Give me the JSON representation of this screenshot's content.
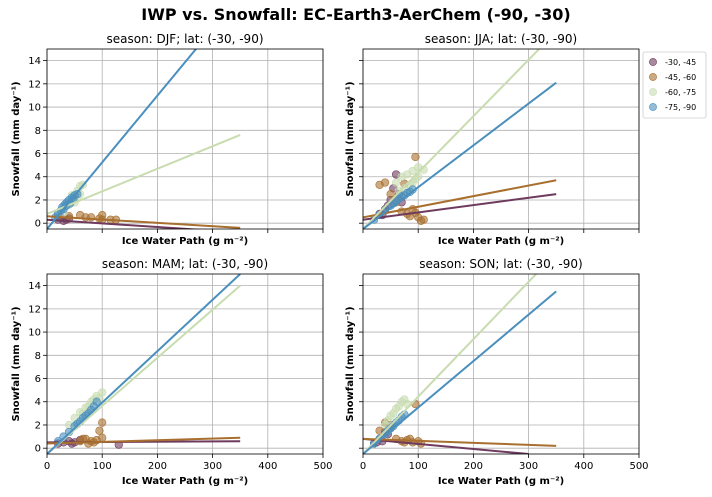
{
  "figure": {
    "title": "IWP vs. Snowfall: EC-Earth3-AerChem  (-90, -30)"
  },
  "colors": {
    "-30, -45": "#6e3a5e",
    "-45, -60": "#a86f2e",
    "-60, -75": "#c8dcb0",
    "-75, -90": "#4a8fbd"
  },
  "legend": {
    "placement": "right of top-right panel",
    "entries": [
      "-30, -45",
      "-45, -60",
      "-60, -75",
      "-75, -90"
    ]
  },
  "chart_data": [
    {
      "type": "scatter",
      "title": "season: DJF; lat: (-30, -90)",
      "xlabel": "Ice Water Path (g m⁻²)",
      "ylabel": "Snowfall (mm day⁻¹)",
      "xlim": [
        0,
        500
      ],
      "ylim": [
        -0.5,
        15
      ],
      "xticks": [
        0,
        100,
        200,
        300,
        400,
        500
      ],
      "yticks": [
        0,
        2,
        4,
        6,
        8,
        10,
        12,
        14
      ],
      "show_xticklabels": false,
      "show_yticklabels": true,
      "grid": true,
      "series": [
        {
          "name": "-30, -45",
          "points": [
            [
              20,
              0.3
            ],
            [
              30,
              0.2
            ],
            [
              40,
              0.4
            ],
            [
              25,
              0.5
            ],
            [
              35,
              0.3
            ]
          ],
          "fit": {
            "x": [
              0,
              350
            ],
            "y": [
              0.3,
              -0.8
            ]
          }
        },
        {
          "name": "-45, -60",
          "points": [
            [
              20,
              0.5
            ],
            [
              40,
              0.6
            ],
            [
              60,
              0.7
            ],
            [
              80,
              0.5
            ],
            [
              100,
              0.7
            ],
            [
              100,
              0.3
            ],
            [
              115,
              0.3
            ],
            [
              125,
              0.3
            ],
            [
              95,
              0.4
            ],
            [
              70,
              0.5
            ]
          ],
          "fit": {
            "x": [
              0,
              350
            ],
            "y": [
              0.6,
              -0.4
            ]
          }
        },
        {
          "name": "-60, -75",
          "points": [
            [
              20,
              0.8
            ],
            [
              30,
              1.2
            ],
            [
              40,
              1.6
            ],
            [
              45,
              2
            ],
            [
              50,
              2.4
            ],
            [
              55,
              2.8
            ],
            [
              60,
              3.2
            ],
            [
              65,
              3.3
            ],
            [
              35,
              1.5
            ],
            [
              50,
              1.8
            ],
            [
              60,
              2.5
            ],
            [
              45,
              2.4
            ],
            [
              30,
              0.9
            ],
            [
              55,
              2.2
            ]
          ],
          "fit": {
            "x": [
              0,
              350
            ],
            "y": [
              0.8,
              7.6
            ]
          }
        },
        {
          "name": "-75, -90",
          "points": [
            [
              15,
              0.5
            ],
            [
              20,
              0.8
            ],
            [
              25,
              1.1
            ],
            [
              28,
              1.4
            ],
            [
              32,
              1.6
            ],
            [
              36,
              1.8
            ],
            [
              40,
              2
            ],
            [
              45,
              2.2
            ],
            [
              50,
              2.4
            ],
            [
              55,
              2.5
            ],
            [
              30,
              1.2
            ],
            [
              35,
              1.5
            ],
            [
              42,
              1.7
            ],
            [
              48,
              2.1
            ]
          ],
          "fit": {
            "x": [
              0,
              350
            ],
            "y": [
              -0.5,
              19.6
            ]
          }
        }
      ]
    },
    {
      "type": "scatter",
      "title": "season: JJA; lat: (-30, -90)",
      "xlabel": "Ice Water Path (g m⁻²)",
      "ylabel": "Snowfall (mm day⁻¹)",
      "xlim": [
        0,
        500
      ],
      "ylim": [
        -0.5,
        15
      ],
      "xticks": [
        0,
        100,
        200,
        300,
        400,
        500
      ],
      "yticks": [
        0,
        2,
        4,
        6,
        8,
        10,
        12,
        14
      ],
      "show_xticklabels": false,
      "show_yticklabels": false,
      "grid": true,
      "series": [
        {
          "name": "-30, -45",
          "points": [
            [
              30,
              0.8
            ],
            [
              40,
              1.2
            ],
            [
              50,
              2
            ],
            [
              55,
              3
            ],
            [
              60,
              4.2
            ],
            [
              45,
              1.5
            ],
            [
              65,
              2.5
            ],
            [
              35,
              0.7
            ],
            [
              70,
              1.8
            ]
          ],
          "fit": {
            "x": [
              0,
              350
            ],
            "y": [
              0.3,
              2.5
            ]
          }
        },
        {
          "name": "-45, -60",
          "points": [
            [
              30,
              3.3
            ],
            [
              40,
              3.5
            ],
            [
              50,
              2.5
            ],
            [
              60,
              1.8
            ],
            [
              70,
              1
            ],
            [
              80,
              0.8
            ],
            [
              90,
              1.2
            ],
            [
              95,
              5.7
            ],
            [
              100,
              0.5
            ],
            [
              110,
              0.3
            ],
            [
              85,
              0.6
            ],
            [
              75,
              3.4
            ],
            [
              105,
              0.2
            ],
            [
              95,
              0.9
            ]
          ],
          "fit": {
            "x": [
              0,
              350
            ],
            "y": [
              0.5,
              3.7
            ]
          }
        },
        {
          "name": "-60, -75",
          "points": [
            [
              60,
              3.5
            ],
            [
              70,
              4
            ],
            [
              80,
              4.2
            ],
            [
              90,
              4.5
            ],
            [
              100,
              4.8
            ],
            [
              110,
              4.6
            ],
            [
              95,
              3.8
            ],
            [
              85,
              3.3
            ],
            [
              75,
              3
            ],
            [
              65,
              2.8
            ],
            [
              100,
              4
            ],
            [
              90,
              3.5
            ]
          ],
          "fit": {
            "x": [
              0,
              350
            ],
            "y": [
              -0.5,
              16.5
            ]
          }
        },
        {
          "name": "-75, -90",
          "points": [
            [
              20,
              0.3
            ],
            [
              30,
              0.7
            ],
            [
              40,
              1.1
            ],
            [
              50,
              1.5
            ],
            [
              60,
              1.9
            ],
            [
              70,
              2.3
            ],
            [
              80,
              2.6
            ],
            [
              90,
              2.9
            ],
            [
              55,
              1.7
            ],
            [
              65,
              2.1
            ],
            [
              75,
              2.4
            ],
            [
              85,
              2.7
            ]
          ],
          "fit": {
            "x": [
              0,
              350
            ],
            "y": [
              -0.5,
              12.1
            ]
          }
        }
      ]
    },
    {
      "type": "scatter",
      "title": "season: MAM; lat: (-30, -90)",
      "xlabel": "Ice Water Path (g m⁻²)",
      "ylabel": "Snowfall (mm day⁻¹)",
      "xlim": [
        0,
        500
      ],
      "ylim": [
        -0.5,
        15
      ],
      "xticks": [
        0,
        100,
        200,
        300,
        400,
        500
      ],
      "yticks": [
        0,
        2,
        4,
        6,
        8,
        10,
        12,
        14
      ],
      "show_xticklabels": true,
      "show_yticklabels": true,
      "grid": true,
      "series": [
        {
          "name": "-30, -45",
          "points": [
            [
              20,
              0.4
            ],
            [
              30,
              0.5
            ],
            [
              40,
              0.6
            ],
            [
              50,
              0.5
            ],
            [
              60,
              0.7
            ],
            [
              45,
              0.4
            ],
            [
              130,
              0.3
            ]
          ],
          "fit": {
            "x": [
              0,
              350
            ],
            "y": [
              0.5,
              0.6
            ]
          }
        },
        {
          "name": "-45, -60",
          "points": [
            [
              60,
              0.6
            ],
            [
              70,
              0.8
            ],
            [
              80,
              0.6
            ],
            [
              90,
              0.7
            ],
            [
              95,
              1.5
            ],
            [
              100,
              2.2
            ],
            [
              85,
              0.5
            ],
            [
              75,
              0.4
            ],
            [
              65,
              0.8
            ],
            [
              100,
              0.9
            ]
          ],
          "fit": {
            "x": [
              0,
              350
            ],
            "y": [
              0.4,
              0.9
            ]
          }
        },
        {
          "name": "-60, -75",
          "points": [
            [
              40,
              2
            ],
            [
              50,
              2.6
            ],
            [
              60,
              3.1
            ],
            [
              70,
              3.5
            ],
            [
              80,
              4
            ],
            [
              90,
              4.5
            ],
            [
              100,
              4.8
            ],
            [
              85,
              4.2
            ],
            [
              75,
              3.6
            ],
            [
              65,
              3
            ],
            [
              95,
              4.3
            ]
          ],
          "fit": {
            "x": [
              0,
              350
            ],
            "y": [
              -0.5,
              14
            ]
          }
        },
        {
          "name": "-75, -90",
          "points": [
            [
              20,
              0.6
            ],
            [
              30,
              1
            ],
            [
              40,
              1.4
            ],
            [
              50,
              1.9
            ],
            [
              60,
              2.3
            ],
            [
              70,
              2.8
            ],
            [
              80,
              3.3
            ],
            [
              90,
              4
            ],
            [
              55,
              2.1
            ],
            [
              65,
              2.6
            ],
            [
              75,
              3
            ],
            [
              85,
              3.6
            ]
          ],
          "fit": {
            "x": [
              0,
              350
            ],
            "y": [
              -0.5,
              15
            ]
          }
        }
      ]
    },
    {
      "type": "scatter",
      "title": "season: SON; lat: (-30, -90)",
      "xlabel": "Ice Water Path (g m⁻²)",
      "ylabel": "Snowfall (mm day⁻¹)",
      "xlim": [
        0,
        500
      ],
      "ylim": [
        -0.5,
        15
      ],
      "xticks": [
        0,
        100,
        200,
        300,
        400,
        500
      ],
      "yticks": [
        0,
        2,
        4,
        6,
        8,
        10,
        12,
        14
      ],
      "show_xticklabels": true,
      "show_yticklabels": false,
      "grid": true,
      "series": [
        {
          "name": "-30, -45",
          "points": [
            [
              20,
              0.4
            ],
            [
              30,
              0.8
            ],
            [
              40,
              1.4
            ],
            [
              50,
              2
            ],
            [
              45,
              1.2
            ],
            [
              35,
              0.6
            ],
            [
              25,
              0.5
            ]
          ],
          "fit": {
            "x": [
              0,
              300
            ],
            "y": [
              0.8,
              -0.5
            ]
          }
        },
        {
          "name": "-45, -60",
          "points": [
            [
              30,
              1.5
            ],
            [
              40,
              2.2
            ],
            [
              50,
              1.8
            ],
            [
              60,
              0.8
            ],
            [
              70,
              0.6
            ],
            [
              80,
              0.7
            ],
            [
              90,
              0.5
            ],
            [
              95,
              3.8
            ],
            [
              100,
              0.6
            ],
            [
              85,
              0.8
            ],
            [
              75,
              0.5
            ],
            [
              105,
              0.4
            ]
          ],
          "fit": {
            "x": [
              0,
              350
            ],
            "y": [
              0.8,
              0.2
            ]
          }
        },
        {
          "name": "-60, -75",
          "points": [
            [
              40,
              2
            ],
            [
              50,
              2.8
            ],
            [
              60,
              3.4
            ],
            [
              70,
              4
            ],
            [
              75,
              4.2
            ],
            [
              65,
              3.6
            ],
            [
              55,
              3
            ],
            [
              80,
              3.8
            ],
            [
              45,
              2.4
            ]
          ],
          "fit": {
            "x": [
              0,
              350
            ],
            "y": [
              -0.5,
              16.8
            ]
          }
        },
        {
          "name": "-75, -90",
          "points": [
            [
              20,
              0.4
            ],
            [
              30,
              0.8
            ],
            [
              40,
              1.2
            ],
            [
              50,
              1.7
            ],
            [
              60,
              2.2
            ],
            [
              70,
              2.7
            ],
            [
              75,
              2.9
            ],
            [
              55,
              1.9
            ],
            [
              65,
              2.4
            ],
            [
              45,
              1.5
            ]
          ],
          "fit": {
            "x": [
              0,
              350
            ],
            "y": [
              -0.5,
              13.5
            ]
          }
        }
      ]
    }
  ]
}
